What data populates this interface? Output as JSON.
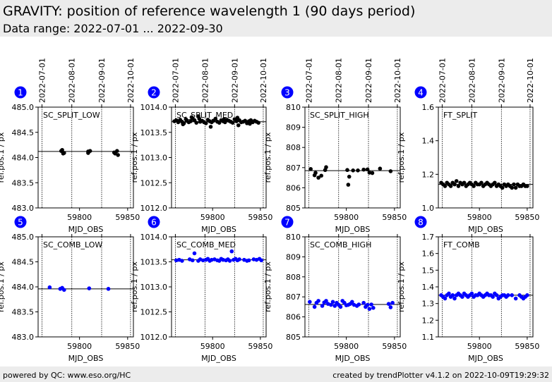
{
  "header": {
    "title": "GRAVITY: position of reference wavelength 1 (90 days period)",
    "subtitle": "Data range: 2022-07-01 ... 2022-09-30"
  },
  "footer": {
    "left": "powered by QC: www.eso.org/HC",
    "right": "created by trendPlotter v4.1.2 on 2022-10-09T19:29:32"
  },
  "colors": {
    "black": "#000000",
    "blue": "#0000ff",
    "badge": "#0000ff",
    "header_bg": "#ececec"
  },
  "chart_data": [
    {
      "type": "scatter",
      "panel": "1",
      "label": "SC_SPLIT_LOW",
      "color": "#000000",
      "xlabel": "MJD_OBS",
      "ylabel": "ref.pos.1 / px",
      "xlim": [
        59757,
        59856
      ],
      "ylim": [
        483.0,
        485.0
      ],
      "yticks": [
        "483.0",
        "483.5",
        "484.0",
        "484.5",
        "485.0"
      ],
      "xticks": [
        59800,
        59850
      ],
      "date_ticks": [
        "2022-07-01",
        "2022-08-01",
        "2022-09-01",
        "2022-10-01"
      ],
      "date_mjd": [
        59761,
        59792,
        59823,
        59853
      ],
      "ref_line": 484.12,
      "x": [
        59781,
        59782,
        59783,
        59784,
        59809,
        59809,
        59811,
        59836,
        59837,
        59839,
        59840
      ],
      "y": [
        484.13,
        484.15,
        484.08,
        484.09,
        484.12,
        484.09,
        484.13,
        484.1,
        484.08,
        484.13,
        484.05
      ]
    },
    {
      "type": "scatter",
      "panel": "2",
      "label": "SC_SPLIT_MED",
      "color": "#000000",
      "xlabel": "MJD_OBS",
      "ylabel": "ref.pos.1 / px",
      "xlim": [
        59757,
        59856
      ],
      "ylim": [
        1012.0,
        1014.0
      ],
      "yticks": [
        "1012.0",
        "1012.5",
        "1013.0",
        "1013.5",
        "1014.0"
      ],
      "xticks": [
        59800,
        59850
      ],
      "date_ticks": [
        "2022-07-01",
        "2022-08-01",
        "2022-09-01",
        "2022-10-01"
      ],
      "date_mjd": [
        59761,
        59792,
        59823,
        59853
      ],
      "ref_line": 1013.71,
      "x": [
        59760,
        59762,
        59764,
        59766,
        59768,
        59770,
        59772,
        59773,
        59775,
        59777,
        59779,
        59781,
        59783,
        59785,
        59787,
        59789,
        59791,
        59793,
        59795,
        59797,
        59799,
        59801,
        59803,
        59805,
        59807,
        59809,
        59811,
        59813,
        59815,
        59817,
        59819,
        59821,
        59823,
        59825,
        59826,
        59828,
        59830,
        59832,
        59834,
        59836,
        59838,
        59840,
        59842,
        59844,
        59846,
        59848,
        59769,
        59778,
        59786,
        59798,
        59812,
        59827,
        59839
      ],
      "y": [
        1013.72,
        1013.74,
        1013.7,
        1013.75,
        1013.71,
        1013.68,
        1013.76,
        1013.73,
        1013.7,
        1013.72,
        1013.78,
        1013.74,
        1013.69,
        1013.82,
        1013.71,
        1013.73,
        1013.7,
        1013.68,
        1013.75,
        1013.72,
        1013.7,
        1013.73,
        1013.77,
        1013.71,
        1013.69,
        1013.74,
        1013.72,
        1013.7,
        1013.75,
        1013.73,
        1013.71,
        1013.69,
        1013.76,
        1013.72,
        1013.79,
        1013.74,
        1013.7,
        1013.71,
        1013.73,
        1013.68,
        1013.72,
        1013.74,
        1013.7,
        1013.73,
        1013.71,
        1013.69,
        1013.66,
        1013.8,
        1013.77,
        1013.61,
        1013.76,
        1013.64,
        1013.67
      ]
    },
    {
      "type": "scatter",
      "panel": "3",
      "label": "SC_SPLIT_HIGH",
      "color": "#000000",
      "xlabel": "MJD_OBS",
      "ylabel": "ref.pos.1 / px",
      "xlim": [
        59757,
        59856
      ],
      "ylim": [
        805,
        810
      ],
      "yticks": [
        "805",
        "806",
        "807",
        "808",
        "809",
        "810"
      ],
      "xticks": [
        59800,
        59850
      ],
      "date_ticks": [
        "2022-07-01",
        "2022-08-01",
        "2022-09-01",
        "2022-10-01"
      ],
      "date_mjd": [
        59761,
        59792,
        59823,
        59853
      ],
      "ref_line": 806.85,
      "x": [
        59763,
        59767,
        59768,
        59771,
        59774,
        59778,
        59779,
        59801,
        59802,
        59803,
        59807,
        59812,
        59818,
        59822,
        59824,
        59827,
        59835,
        59846
      ],
      "y": [
        806.93,
        806.62,
        806.74,
        806.5,
        806.6,
        806.88,
        807.02,
        806.88,
        806.15,
        806.55,
        806.86,
        806.86,
        806.9,
        806.91,
        806.75,
        806.73,
        806.95,
        806.82
      ]
    },
    {
      "type": "scatter",
      "panel": "4",
      "label": "FT_SPLIT",
      "color": "#000000",
      "xlabel": "MJD_OBS",
      "ylabel": "ref.pos.1 / px",
      "xlim": [
        59757,
        59856
      ],
      "ylim": [
        1.0,
        1.6
      ],
      "yticks": [
        "1.0",
        "1.2",
        "1.4",
        "1.6"
      ],
      "xticks": [
        59800,
        59850
      ],
      "date_ticks": [
        "2022-07-01",
        "2022-08-01",
        "2022-09-01",
        "2022-10-01"
      ],
      "date_mjd": [
        59761,
        59792,
        59823,
        59853
      ],
      "ref_line": 1.14,
      "x": [
        59760,
        59762,
        59764,
        59766,
        59768,
        59770,
        59772,
        59774,
        59776,
        59778,
        59780,
        59782,
        59784,
        59786,
        59788,
        59790,
        59792,
        59794,
        59796,
        59798,
        59800,
        59802,
        59804,
        59806,
        59808,
        59810,
        59812,
        59814,
        59816,
        59818,
        59820,
        59822,
        59824,
        59826,
        59828,
        59830,
        59832,
        59834,
        59836,
        59838,
        59840,
        59842,
        59844,
        59846,
        59848,
        59850
      ],
      "y": [
        1.15,
        1.14,
        1.13,
        1.15,
        1.14,
        1.13,
        1.15,
        1.14,
        1.16,
        1.13,
        1.15,
        1.14,
        1.15,
        1.13,
        1.14,
        1.15,
        1.14,
        1.13,
        1.15,
        1.14,
        1.14,
        1.15,
        1.13,
        1.14,
        1.15,
        1.14,
        1.13,
        1.14,
        1.15,
        1.13,
        1.14,
        1.13,
        1.12,
        1.14,
        1.13,
        1.14,
        1.13,
        1.12,
        1.14,
        1.12,
        1.14,
        1.13,
        1.13,
        1.14,
        1.13,
        1.13
      ]
    },
    {
      "type": "scatter",
      "panel": "5",
      "label": "SC_COMB_LOW",
      "color": "#0000ff",
      "xlabel": "MJD_OBS",
      "ylabel": "ref.pos.1 / px",
      "xlim": [
        59757,
        59856
      ],
      "ylim": [
        483.0,
        485.0
      ],
      "yticks": [
        "483.0",
        "483.5",
        "484.0",
        "484.5",
        "485.0"
      ],
      "xticks": [
        59800,
        59850
      ],
      "date_ticks": [
        "2022-07-01",
        "2022-08-01",
        "2022-09-01",
        "2022-10-01"
      ],
      "date_mjd": [
        59761,
        59792,
        59823,
        59853
      ],
      "ref_line": 483.96,
      "x": [
        59769,
        59780,
        59782,
        59784,
        59810,
        59830
      ],
      "y": [
        483.99,
        483.96,
        483.98,
        483.94,
        483.97,
        483.96
      ]
    },
    {
      "type": "scatter",
      "panel": "6",
      "label": "SC_COMB_MED",
      "color": "#0000ff",
      "xlabel": "MJD_OBS",
      "ylabel": "ref.pos.1 / px",
      "xlim": [
        59757,
        59856
      ],
      "ylim": [
        1012.0,
        1014.0
      ],
      "yticks": [
        "1012.0",
        "1012.5",
        "1013.0",
        "1013.5",
        "1014.0"
      ],
      "xticks": [
        59800,
        59850
      ],
      "date_ticks": [
        "2022-07-01",
        "2022-08-01",
        "2022-09-01",
        "2022-10-01"
      ],
      "date_mjd": [
        59761,
        59792,
        59823,
        59853
      ],
      "ref_line": 1013.54,
      "x": [
        59762,
        59765,
        59768,
        59776,
        59779,
        59781,
        59785,
        59787,
        59790,
        59793,
        59795,
        59797,
        59799,
        59802,
        59805,
        59807,
        59809,
        59811,
        59814,
        59816,
        59818,
        59820,
        59822,
        59824,
        59826,
        59828,
        59833,
        59836,
        59838,
        59843,
        59846,
        59849,
        59851
      ],
      "y": [
        1013.53,
        1013.54,
        1013.52,
        1013.55,
        1013.53,
        1013.67,
        1013.52,
        1013.55,
        1013.53,
        1013.54,
        1013.56,
        1013.52,
        1013.54,
        1013.55,
        1013.53,
        1013.52,
        1013.56,
        1013.54,
        1013.53,
        1013.55,
        1013.52,
        1013.71,
        1013.54,
        1013.56,
        1013.53,
        1013.55,
        1013.54,
        1013.52,
        1013.53,
        1013.55,
        1013.54,
        1013.56,
        1013.53
      ]
    },
    {
      "type": "scatter",
      "panel": "7",
      "label": "SC_COMB_HIGH",
      "color": "#0000ff",
      "xlabel": "MJD_OBS",
      "ylabel": "ref.pos.1 / px",
      "xlim": [
        59757,
        59856
      ],
      "ylim": [
        805,
        810
      ],
      "yticks": [
        "805",
        "806",
        "807",
        "808",
        "809",
        "810"
      ],
      "xticks": [
        59800,
        59850
      ],
      "date_ticks": [
        "2022-07-01",
        "2022-08-01",
        "2022-09-01",
        "2022-10-01"
      ],
      "date_mjd": [
        59761,
        59792,
        59823,
        59853
      ],
      "ref_line": 806.62,
      "x": [
        59762,
        59767,
        59769,
        59771,
        59775,
        59777,
        59779,
        59781,
        59784,
        59786,
        59788,
        59790,
        59792,
        59794,
        59796,
        59798,
        59800,
        59802,
        59804,
        59806,
        59808,
        59811,
        59813,
        59818,
        59820,
        59822,
        59824,
        59826,
        59828,
        59844,
        59846,
        59848
      ],
      "y": [
        806.75,
        806.5,
        806.7,
        806.8,
        806.55,
        806.72,
        806.8,
        806.65,
        806.6,
        806.75,
        806.55,
        806.7,
        806.6,
        806.5,
        806.8,
        806.7,
        806.58,
        806.6,
        806.65,
        806.75,
        806.6,
        806.55,
        806.62,
        806.7,
        806.5,
        806.6,
        806.4,
        806.62,
        806.45,
        806.65,
        806.48,
        806.7
      ]
    },
    {
      "type": "scatter",
      "panel": "8",
      "label": "FT_COMB",
      "color": "#0000ff",
      "xlabel": "MJD_OBS",
      "ylabel": "ref.pos.1 / px",
      "xlim": [
        59757,
        59856
      ],
      "ylim": [
        1.1,
        1.7
      ],
      "yticks": [
        "1.1",
        "1.2",
        "1.3",
        "1.4",
        "1.5",
        "1.6",
        "1.7"
      ],
      "xticks": [
        59800,
        59850
      ],
      "date_ticks": [
        "2022-07-01",
        "2022-08-01",
        "2022-09-01",
        "2022-10-01"
      ],
      "date_mjd": [
        59761,
        59792,
        59823,
        59853
      ],
      "ref_line": 1.35,
      "x": [
        59760,
        59762,
        59764,
        59766,
        59768,
        59770,
        59772,
        59774,
        59776,
        59778,
        59780,
        59782,
        59784,
        59786,
        59788,
        59790,
        59792,
        59794,
        59796,
        59798,
        59800,
        59802,
        59804,
        59806,
        59808,
        59810,
        59812,
        59814,
        59816,
        59818,
        59820,
        59822,
        59824,
        59826,
        59828,
        59830,
        59834,
        59838,
        59842,
        59844,
        59846,
        59848,
        59850
      ],
      "y": [
        1.35,
        1.34,
        1.33,
        1.35,
        1.36,
        1.34,
        1.35,
        1.33,
        1.35,
        1.36,
        1.35,
        1.34,
        1.36,
        1.35,
        1.34,
        1.35,
        1.36,
        1.34,
        1.35,
        1.35,
        1.36,
        1.35,
        1.34,
        1.35,
        1.36,
        1.35,
        1.35,
        1.34,
        1.36,
        1.35,
        1.33,
        1.34,
        1.35,
        1.35,
        1.34,
        1.35,
        1.35,
        1.33,
        1.35,
        1.34,
        1.33,
        1.34,
        1.35
      ]
    }
  ]
}
